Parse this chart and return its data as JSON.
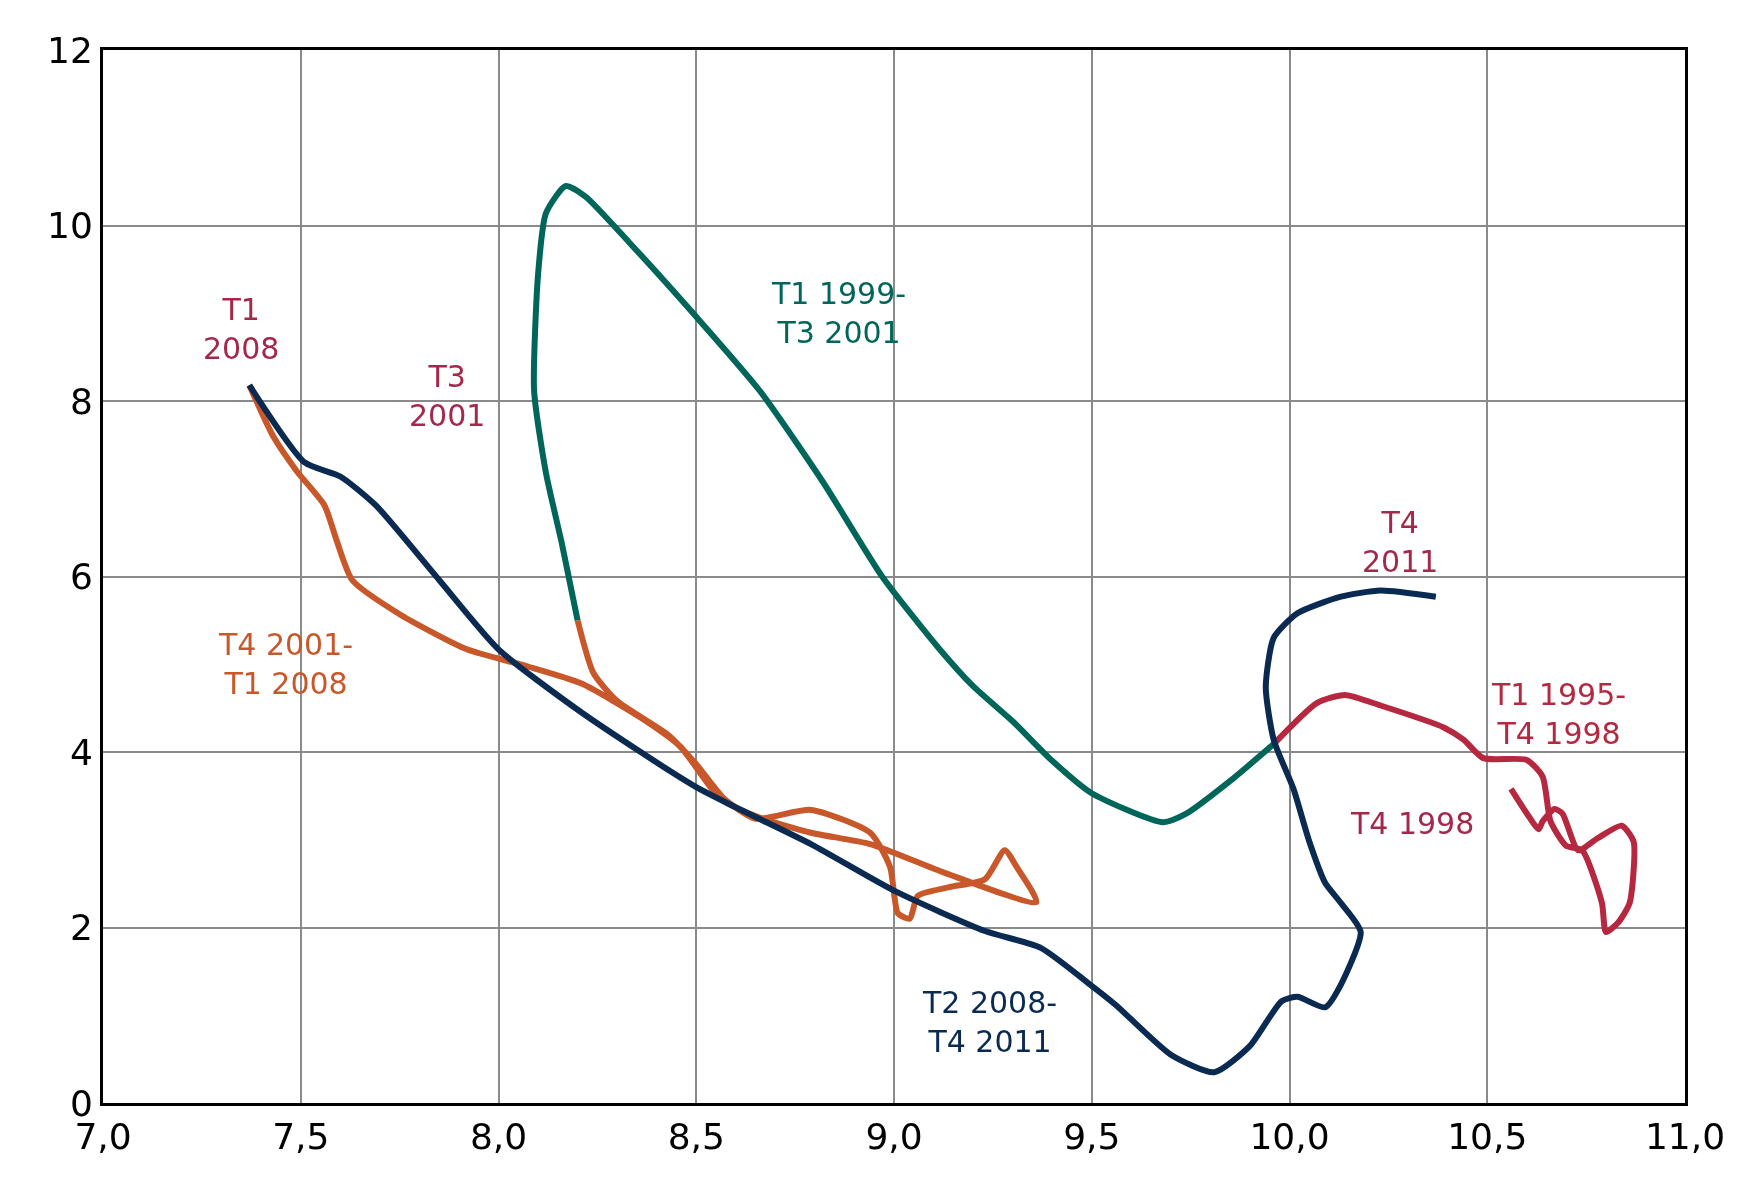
{
  "chart_data": {
    "type": "line",
    "grid": true,
    "marker": "none",
    "line_style": "solid",
    "xlim": [
      7.0,
      11.0
    ],
    "ylim": [
      0,
      12
    ],
    "xticks": [
      {
        "value": 7.0,
        "label": "7,0"
      },
      {
        "value": 7.5,
        "label": "7,5"
      },
      {
        "value": 8.0,
        "label": "8,0"
      },
      {
        "value": 8.5,
        "label": "8,5"
      },
      {
        "value": 9.0,
        "label": "9,0"
      },
      {
        "value": 9.5,
        "label": "9,5"
      },
      {
        "value": 10.0,
        "label": "10,0"
      },
      {
        "value": 10.5,
        "label": "10,5"
      },
      {
        "value": 11.0,
        "label": "11,0"
      }
    ],
    "yticks": [
      0,
      2,
      4,
      6,
      8,
      10,
      12
    ],
    "series": [
      {
        "color": "#b5283f",
        "x": [
          10.56,
          10.6,
          10.63,
          10.64,
          10.67,
          10.69,
          10.73,
          10.78,
          10.84,
          10.87,
          10.86,
          10.83,
          10.8,
          10.79,
          10.74,
          10.7,
          10.66,
          10.64,
          10.6,
          10.49,
          10.44,
          10.39,
          10.23,
          10.14,
          10.07,
          9.96
        ],
        "values": [
          3.58,
          3.3,
          3.12,
          3.21,
          3.35,
          3.3,
          2.88,
          3.02,
          3.16,
          2.98,
          2.28,
          2.05,
          1.95,
          2.28,
          2.88,
          2.93,
          3.21,
          3.72,
          3.91,
          3.93,
          4.14,
          4.28,
          4.53,
          4.65,
          4.56,
          4.09
        ]
      },
      {
        "color": "#00665a",
        "x": [
          9.96,
          9.85,
          9.74,
          9.68,
          9.5,
          9.4,
          9.3,
          9.2,
          9.11,
          8.97,
          8.82,
          8.66,
          8.5,
          8.33,
          8.22,
          8.17,
          8.12,
          8.1,
          8.09,
          8.12,
          8.16,
          8.2
        ],
        "values": [
          4.09,
          3.67,
          3.3,
          3.2,
          3.53,
          3.9,
          4.35,
          4.75,
          5.2,
          6.0,
          7.08,
          8.12,
          8.96,
          9.81,
          10.33,
          10.45,
          10.14,
          9.44,
          8.12,
          7.18,
          6.38,
          5.5
        ]
      },
      {
        "color": "#c8582a",
        "x": [
          8.2,
          8.24,
          8.3,
          8.43,
          8.5,
          8.57,
          8.65,
          8.79,
          8.94,
          8.99,
          9.01,
          9.04,
          9.06,
          9.14,
          9.23,
          9.28,
          9.31,
          9.36,
          9.13,
          8.94,
          8.79,
          8.65,
          8.56,
          8.46,
          8.36,
          8.21,
          8.07,
          7.92,
          7.75,
          7.63,
          7.59,
          7.56,
          7.49,
          7.43,
          7.37
        ],
        "values": [
          5.5,
          4.9,
          4.58,
          4.19,
          3.86,
          3.47,
          3.24,
          3.34,
          3.08,
          2.69,
          2.16,
          2.1,
          2.36,
          2.46,
          2.55,
          2.88,
          2.69,
          2.29,
          2.62,
          2.95,
          3.08,
          3.27,
          3.47,
          4.06,
          4.39,
          4.78,
          4.98,
          5.17,
          5.57,
          5.96,
          6.42,
          6.81,
          7.2,
          7.6,
          8.18
        ]
      },
      {
        "color": "#0a2a52",
        "x": [
          7.37,
          7.51,
          7.6,
          7.69,
          7.85,
          8.0,
          8.21,
          8.5,
          8.79,
          9.0,
          9.23,
          9.37,
          9.49,
          9.56,
          9.7,
          9.81,
          9.9,
          9.98,
          10.02,
          10.09,
          10.13,
          10.18,
          10.13,
          10.09,
          10.05,
          10.01,
          9.96,
          9.94,
          9.96,
          10.02,
          10.13,
          10.23,
          10.37
        ],
        "values": [
          8.18,
          7.3,
          7.14,
          6.81,
          5.96,
          5.17,
          4.45,
          3.6,
          2.95,
          2.42,
          1.96,
          1.77,
          1.37,
          1.12,
          0.55,
          0.35,
          0.65,
          1.16,
          1.21,
          1.09,
          1.35,
          1.95,
          2.28,
          2.51,
          2.98,
          3.58,
          4.14,
          4.74,
          5.3,
          5.58,
          5.77,
          5.84,
          5.77
        ]
      }
    ],
    "annotations": [
      {
        "text": "T1\n2008",
        "x": 7.37,
        "y": 8.18
      },
      "T3\n2001",
      {
        "text": "T1 1999-\nT3 2001",
        "x": 8.66,
        "y": 8.12
      },
      {
        "text": "T4 2001-\nT1 2008",
        "x": 7.63,
        "y": 5.96
      },
      {
        "text": "T4\n2011",
        "x": 10.37,
        "y": 5.77
      },
      {
        "text": "T1 1995-\nT4 1998",
        "x": 10.49,
        "y": 3.93
      },
      "T4 1998",
      {
        "text": "T2 2008-\nT4 2011",
        "x": 9.37,
        "y": 1.77
      }
    ]
  }
}
